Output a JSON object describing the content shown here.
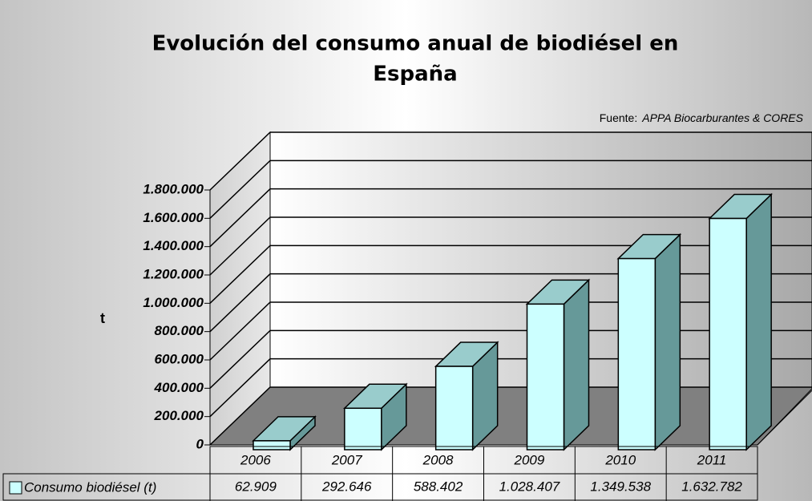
{
  "chart_data": {
    "type": "bar3d",
    "title": [
      "Evolución del consumo anual de biodiésel en",
      "España"
    ],
    "source_label": "Fuente:",
    "source_name": "APPA Biocarburantes & CORES",
    "ylabel": "t",
    "categories": [
      "2006",
      "2007",
      "2008",
      "2009",
      "2010",
      "2011"
    ],
    "series": [
      {
        "name": "Consumo biodiésel (t)",
        "color": "#ccffff",
        "values": [
          62909,
          292646,
          588402,
          1028407,
          1349538,
          1632782
        ],
        "value_labels": [
          "62.909",
          "292.646",
          "588.402",
          "1.028.407",
          "1.349.538",
          "1.632.782"
        ]
      }
    ],
    "ylim": [
      0,
      1800000
    ],
    "yticks": [
      0,
      {
        "value": 200000,
        "label": "200.000"
      },
      {
        "value": 400000,
        "label": "400.000"
      },
      {
        "value": 600000,
        "label": "600.000"
      },
      {
        "value": 800000,
        "label": "800.000"
      },
      {
        "value": 1000000,
        "label": "1.000.000"
      },
      {
        "value": 1200000,
        "label": "1.200.000"
      },
      {
        "value": 1400000,
        "label": "1.400.000"
      },
      {
        "value": 1600000,
        "label": "1.600.000"
      },
      {
        "value": 1800000,
        "label": "1.800.000"
      }
    ],
    "grid": true
  }
}
